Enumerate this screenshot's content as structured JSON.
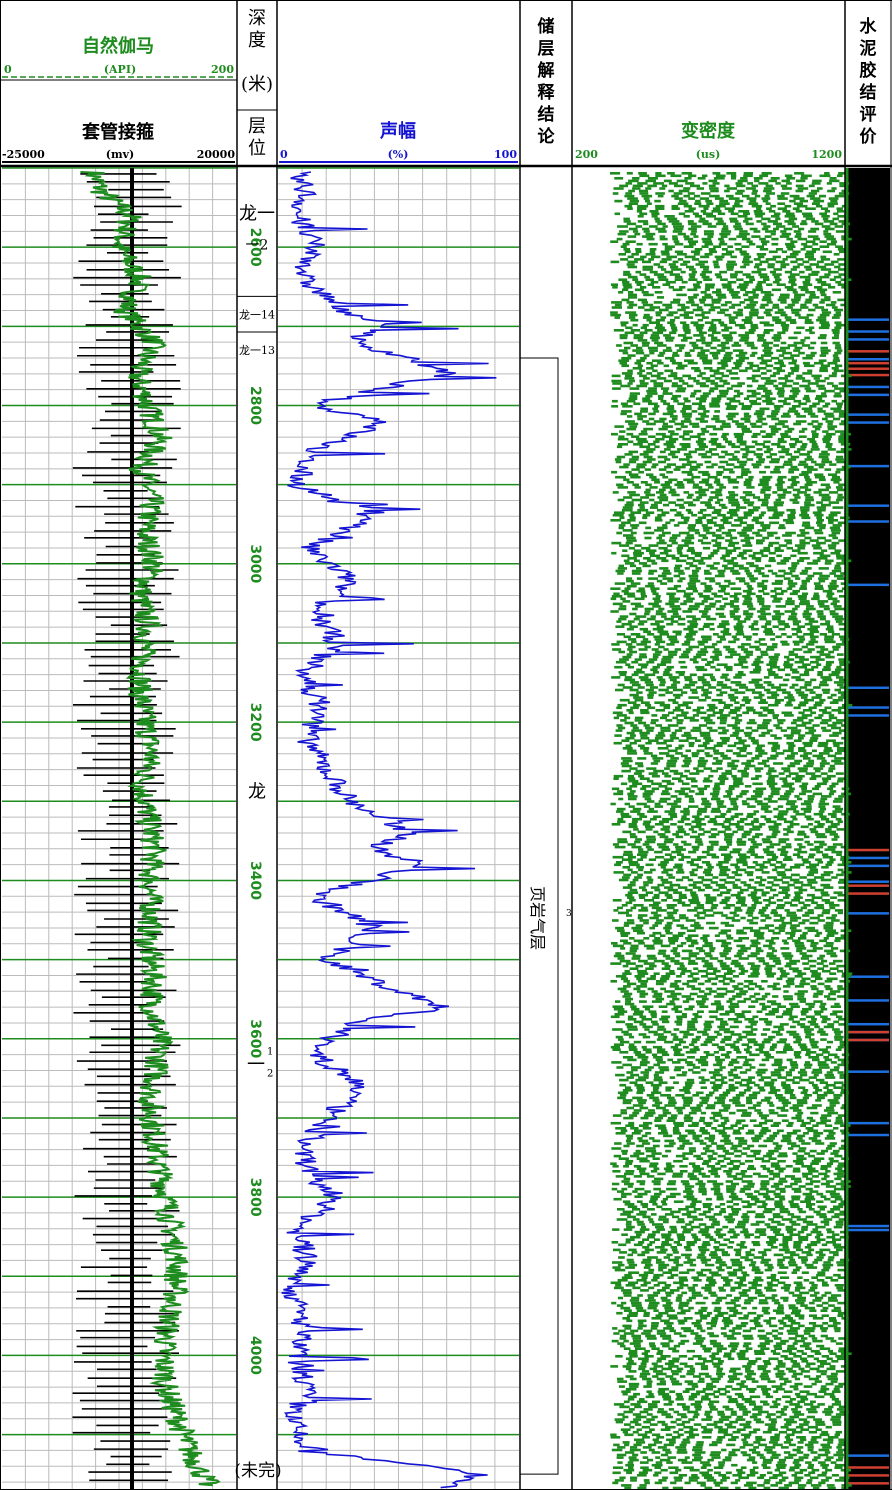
{
  "headers": {
    "gr": {
      "title": "自然伽马",
      "unit": "(API)",
      "min": "0",
      "max": "200",
      "color": "#1e8c1e"
    },
    "ccl": {
      "title": "套管接箍",
      "unit": "(mv)",
      "min": "-25000",
      "max": "20000",
      "color": "#000000"
    },
    "depth": {
      "title": "深度",
      "unit": "(米)"
    },
    "layer": {
      "title": "层位"
    },
    "amp": {
      "title": "声幅",
      "unit": "(%)",
      "min": "0",
      "max": "100",
      "color": "#1414d2"
    },
    "res": {
      "title": "储层解释结论"
    },
    "vdl": {
      "title": "变密度",
      "unit": "(us)",
      "min": "200",
      "max": "1200",
      "color": "#1e8c1e"
    },
    "cbl": {
      "title": "水泥胶结评价"
    }
  },
  "depth_ticks": [
    "2600",
    "2800",
    "3000",
    "3200",
    "3400",
    "3600",
    "3800",
    "4000"
  ],
  "formations": [
    {
      "label": "龙一2",
      "sup": "2",
      "depth": 2565
    },
    {
      "label": "龙一14",
      "depth": 2690
    },
    {
      "label": "龙一13",
      "depth": 2735
    },
    {
      "label": "龙",
      "depth": 3295
    },
    {
      "label": "一",
      "sup": "1",
      "sub": "2",
      "depth": 3640
    }
  ],
  "reservoir": {
    "label": "页岩气层",
    "number": "3",
    "top": 2740,
    "bottom": 4150
  },
  "footnote": "(未完)",
  "chart_data": {
    "type": "line",
    "depth_range": [
      2500,
      4170
    ],
    "depth_unit": "米",
    "series": [
      {
        "name": "自然伽马",
        "unit": "API",
        "range": [
          0,
          200
        ],
        "depth": [
          2505,
          2530,
          2560,
          2600,
          2640,
          2680,
          2720,
          2760,
          2800,
          2840,
          2880,
          2920,
          2960,
          3000,
          3040,
          3080,
          3120,
          3160,
          3200,
          3240,
          3280,
          3320,
          3360,
          3400,
          3440,
          3480,
          3520,
          3560,
          3600,
          3640,
          3680,
          3720,
          3760,
          3800,
          3840,
          3880,
          3920,
          3960,
          4000,
          4040,
          4080,
          4120,
          4160
        ],
        "values": [
          78,
          85,
          110,
          100,
          118,
          105,
          130,
          115,
          125,
          135,
          120,
          128,
          122,
          130,
          118,
          125,
          120,
          118,
          122,
          128,
          120,
          125,
          130,
          126,
          128,
          124,
          130,
          128,
          135,
          132,
          126,
          130,
          134,
          140,
          145,
          150,
          148,
          142,
          138,
          140,
          150,
          160,
          175
        ]
      },
      {
        "name": "声幅",
        "unit": "%",
        "range": [
          0,
          100
        ],
        "depth": [
          2505,
          2530,
          2560,
          2600,
          2640,
          2680,
          2700,
          2720,
          2740,
          2760,
          2780,
          2800,
          2820,
          2860,
          2900,
          2940,
          2980,
          3020,
          3060,
          3100,
          3140,
          3180,
          3220,
          3260,
          3300,
          3340,
          3360,
          3380,
          3420,
          3460,
          3500,
          3540,
          3560,
          3580,
          3620,
          3660,
          3700,
          3740,
          3780,
          3800,
          3840,
          3880,
          3920,
          3960,
          4000,
          4040,
          4080,
          4120,
          4150,
          4160
        ],
        "values": [
          6,
          12,
          8,
          15,
          10,
          28,
          45,
          30,
          55,
          70,
          40,
          15,
          45,
          12,
          8,
          40,
          12,
          30,
          15,
          25,
          10,
          18,
          12,
          20,
          30,
          55,
          40,
          60,
          15,
          40,
          20,
          50,
          70,
          30,
          15,
          35,
          20,
          10,
          15,
          25,
          8,
          12,
          6,
          10,
          8,
          12,
          6,
          10,
          85,
          70
        ]
      },
      {
        "name": "套管接箍",
        "unit": "mv",
        "range": [
          -25000,
          20000
        ],
        "collar_spacing_m": 10
      }
    ]
  },
  "cement_bond": {
    "blue_lines": [
      2690,
      2705,
      2715,
      2740,
      2775,
      2785,
      2810,
      2820,
      2875,
      2925,
      2945,
      3025,
      3155,
      3180,
      3190,
      3370,
      3380,
      3400,
      3440,
      3520,
      3550,
      3580,
      3590,
      3600,
      3640,
      3705,
      3720,
      3835,
      3840,
      4125
    ],
    "red_lines": [
      2730,
      2745,
      2752,
      2760,
      3360,
      3405,
      3415,
      3590,
      3600,
      4140,
      4150,
      4160
    ]
  }
}
